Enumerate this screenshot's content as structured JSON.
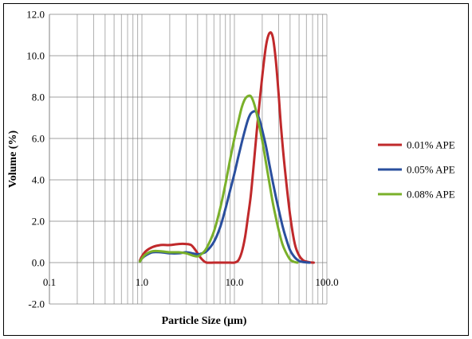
{
  "chart_data": {
    "type": "line",
    "title": "",
    "xlabel": "Particle Size (µm)",
    "ylabel": "Volume (%)",
    "x_scale": "log",
    "xlim": [
      0.1,
      100.0
    ],
    "ylim": [
      -2.0,
      12.0
    ],
    "x_tick_labels": [
      "0.1",
      "1.0",
      "10.0",
      "100.0"
    ],
    "x_ticks": [
      0.1,
      1.0,
      10.0,
      100.0
    ],
    "y_tick_labels": [
      "-2.0",
      "0.0",
      "2.0",
      "4.0",
      "6.0",
      "8.0",
      "10.0",
      "12.0"
    ],
    "y_ticks": [
      -2,
      0,
      2,
      4,
      6,
      8,
      10,
      12
    ],
    "grid": {
      "vertical_minor_log": true,
      "horizontal_major": true
    },
    "legend_position": "right",
    "series": [
      {
        "name": "0.01% APE",
        "color": "#c0292b",
        "x": [
          0.95,
          1.0,
          1.1,
          1.3,
          1.6,
          2.0,
          2.5,
          3.0,
          3.4,
          3.8,
          4.2,
          4.6,
          5.0,
          6.0,
          7.0,
          8.0,
          9.0,
          10.0,
          11.0,
          12.0,
          13.0,
          14.0,
          15.0,
          16.0,
          17.0,
          18.0,
          20.0,
          22.0,
          24.0,
          26.0,
          28.0,
          30.0,
          32.0,
          35.0,
          40.0,
          45.0,
          50.0,
          55.0,
          60.0,
          66.0,
          72.0
        ],
        "y": [
          0.1,
          0.3,
          0.55,
          0.75,
          0.85,
          0.85,
          0.9,
          0.9,
          0.85,
          0.6,
          0.3,
          0.1,
          0.0,
          0.0,
          0.0,
          0.0,
          0.0,
          0.0,
          0.1,
          0.5,
          1.2,
          2.2,
          3.2,
          4.5,
          5.8,
          7.0,
          9.0,
          10.5,
          11.1,
          10.9,
          9.8,
          8.2,
          6.5,
          4.6,
          2.3,
          0.9,
          0.35,
          0.12,
          0.05,
          0.01,
          0.0
        ]
      },
      {
        "name": "0.05% APE",
        "color": "#2a4f9e",
        "x": [
          0.95,
          1.0,
          1.1,
          1.3,
          1.6,
          2.0,
          2.5,
          3.0,
          3.5,
          4.0,
          4.5,
          5.0,
          6.0,
          7.0,
          8.0,
          9.0,
          10.0,
          11.0,
          12.0,
          13.0,
          14.0,
          15.0,
          16.0,
          17.0,
          18.0,
          19.0,
          20.0,
          22.0,
          24.0,
          26.0,
          28.0,
          30.0,
          33.0,
          36.0,
          40.0,
          45.0,
          50.0,
          55.0,
          60.0,
          65.0
        ],
        "y": [
          0.05,
          0.2,
          0.35,
          0.5,
          0.5,
          0.45,
          0.45,
          0.5,
          0.45,
          0.4,
          0.45,
          0.55,
          1.0,
          1.7,
          2.6,
          3.5,
          4.3,
          5.1,
          5.8,
          6.4,
          6.9,
          7.2,
          7.3,
          7.3,
          7.1,
          6.8,
          6.4,
          5.6,
          4.7,
          3.9,
          3.2,
          2.6,
          1.8,
          1.2,
          0.6,
          0.25,
          0.08,
          0.03,
          0.01,
          0.0
        ]
      },
      {
        "name": "0.08% APE",
        "color": "#7ab02a",
        "x": [
          0.95,
          1.0,
          1.1,
          1.3,
          1.6,
          2.0,
          2.5,
          3.0,
          3.5,
          4.0,
          4.5,
          5.0,
          6.0,
          7.0,
          8.0,
          9.0,
          10.0,
          11.0,
          12.0,
          13.0,
          14.0,
          15.0,
          16.0,
          17.0,
          18.0,
          20.0,
          22.0,
          24.0,
          26.0,
          28.0,
          30.0,
          33.0,
          36.0,
          40.0,
          44.0,
          48.0
        ],
        "y": [
          0.05,
          0.2,
          0.4,
          0.55,
          0.55,
          0.5,
          0.5,
          0.45,
          0.35,
          0.3,
          0.45,
          0.7,
          1.5,
          2.6,
          3.8,
          5.0,
          6.0,
          6.8,
          7.5,
          7.9,
          8.05,
          8.05,
          7.8,
          7.4,
          6.9,
          5.9,
          4.8,
          3.8,
          2.9,
          2.2,
          1.6,
          0.9,
          0.5,
          0.15,
          0.04,
          0.0
        ]
      }
    ]
  }
}
